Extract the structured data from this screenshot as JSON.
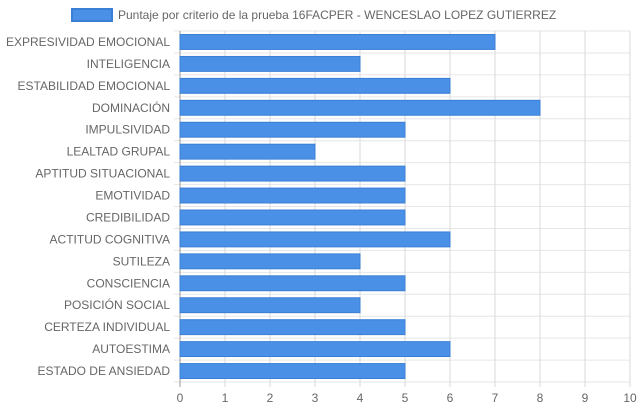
{
  "chart_data": {
    "type": "bar",
    "orientation": "horizontal",
    "categories": [
      "EXPRESIVIDAD EMOCIONAL",
      "INTELIGENCIA",
      "ESTABILIDAD EMOCIONAL",
      "DOMINACIÓN",
      "IMPULSIVIDAD",
      "LEALTAD GRUPAL",
      "APTITUD SITUACIONAL",
      "EMOTIVIDAD",
      "CREDIBILIDAD",
      "ACTITUD COGNITIVA",
      "SUTILEZA",
      "CONSCIENCIA",
      "POSICIÓN SOCIAL",
      "CERTEZA INDIVIDUAL",
      "AUTOESTIMA",
      "ESTADO DE ANSIEDAD"
    ],
    "series": [
      {
        "name": "Puntaje por criterio de la prueba 16FACPER - WENCESLAO LOPEZ GUTIERREZ",
        "values": [
          7,
          4,
          6,
          8,
          5,
          3,
          5,
          5,
          5,
          6,
          4,
          5,
          4,
          5,
          6,
          5
        ]
      }
    ],
    "xlim": [
      0,
      10
    ],
    "xticks": [
      "0",
      "1",
      "2",
      "3",
      "4",
      "5",
      "6",
      "7",
      "8",
      "9",
      "10"
    ],
    "grid": true,
    "legend_position": "top",
    "colors": {
      "bar_fill": "#4a90e6",
      "bar_stroke": "#3a7fd5",
      "grid": "#d9d9d9",
      "text": "#666666"
    }
  }
}
